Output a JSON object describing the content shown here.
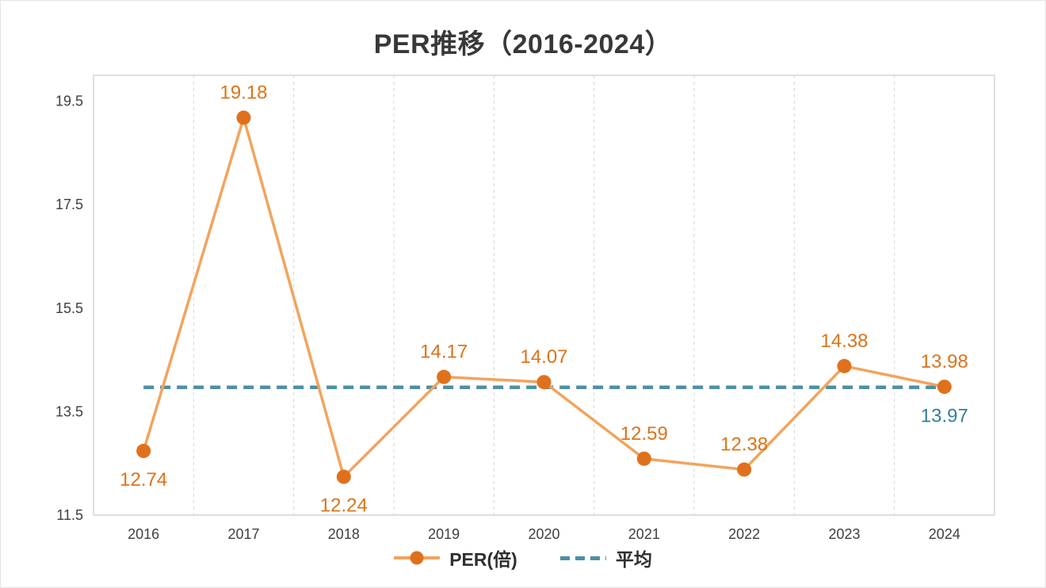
{
  "title": "PER推移（2016-2024）",
  "chart_data": {
    "type": "line",
    "title": "PER推移（2016-2024）",
    "categories": [
      "2016",
      "2017",
      "2018",
      "2019",
      "2020",
      "2021",
      "2022",
      "2023",
      "2024"
    ],
    "series": [
      {
        "name": "PER(倍)",
        "values": [
          12.74,
          19.18,
          12.24,
          14.17,
          14.07,
          12.59,
          12.38,
          14.38,
          13.98
        ],
        "labels": [
          "12.74",
          "19.18",
          "12.24",
          "14.17",
          "14.07",
          "12.59",
          "12.38",
          "14.38",
          "13.98"
        ],
        "label_positions": [
          "below",
          "above",
          "below",
          "above",
          "above",
          "above",
          "above",
          "above",
          "above"
        ],
        "line_color": "#F2A45C",
        "marker_color": "#E0711C",
        "label_color": "#DC7318"
      },
      {
        "name": "平均",
        "value": 13.97,
        "label": "13.97",
        "style": "dashed",
        "color": "#4B90A5",
        "label_color": "#35809B"
      }
    ],
    "ylim": [
      11.5,
      20.0
    ],
    "yticks": [
      19.5,
      17.5,
      15.5,
      13.5,
      11.5
    ],
    "grid": "vertical-dashed",
    "legend_position": "bottom"
  },
  "colors": {
    "grid": "#D6D6D6",
    "plot_border": "#C9C9C9",
    "tick_text": "#3F3F3F",
    "title_text": "#383838",
    "legend_text": "#2F2F2F",
    "background": "#FFFFFF"
  }
}
